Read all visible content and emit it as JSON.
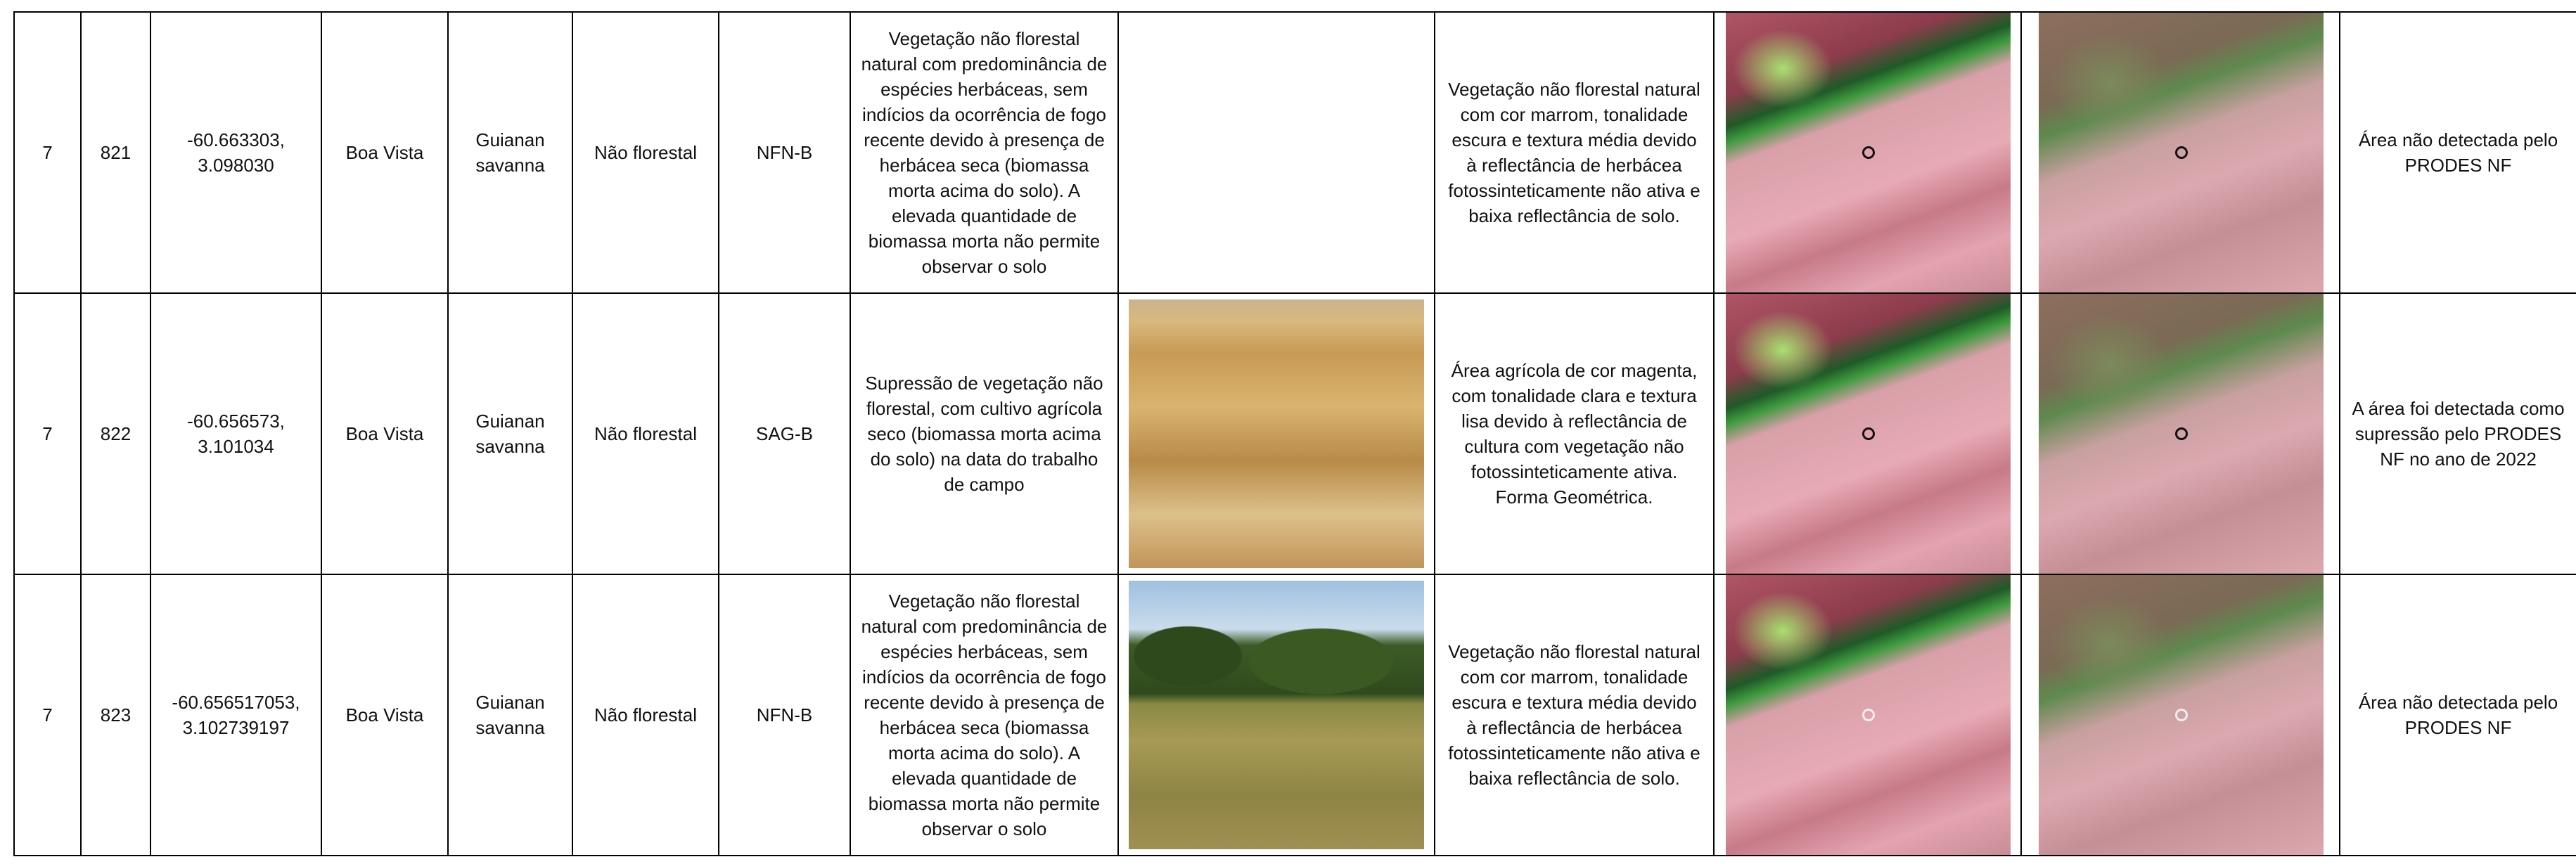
{
  "table": {
    "rows": [
      [
        "7",
        "821",
        "-60.663303, 3.098030",
        "Boa Vista",
        "Guianan savanna",
        "Não florestal",
        "NFN-B",
        "Vegetação não florestal natural com predominância de espécies herbáceas, sem indícios da ocorrência de fogo recente devido à presença de herbácea seca (biomassa morta acima do solo). A elevada quantidade de biomassa morta não permite observar o solo",
        "Vegetação não florestal natural com cor marrom, tonalidade escura e textura média devido à reflectância de herbácea fotossinteticamente não ativa e baixa reflectância de solo.",
        "Área não detectada pelo PRODES NF"
      ],
      [
        "7",
        "822",
        "-60.656573, 3.101034",
        "Boa Vista",
        "Guianan savanna",
        "Não florestal",
        "SAG-B",
        "Supressão de vegetação não florestal, com cultivo agrícola seco (biomassa morta acima do solo) na data do trabalho de campo",
        "Área agrícola de cor magenta, com tonalidade clara e textura lisa devido à reflectância de cultura com vegetação não fotossinteticamente ativa. Forma Geométrica.",
        "A área foi detectada como supressão pelo PRODES NF no ano de 2022"
      ],
      [
        "7",
        "823",
        "-60.656517053, 3.102739197",
        "Boa Vista",
        "Guianan savanna",
        "Não florestal",
        "NFN-B",
        "Vegetação não florestal natural com predominância de espécies herbáceas, sem indícios da ocorrência de fogo recente devido à presença de herbácea seca (biomassa morta acima do solo). A elevada quantidade de biomassa morta não permite observar o solo",
        "Vegetação não florestal natural com cor marrom, tonalidade escura e textura média devido à reflectância de herbácea fotossinteticamente não ativa e baixa reflectância de solo.",
        "Área não detectada pelo PRODES NF"
      ]
    ]
  }
}
